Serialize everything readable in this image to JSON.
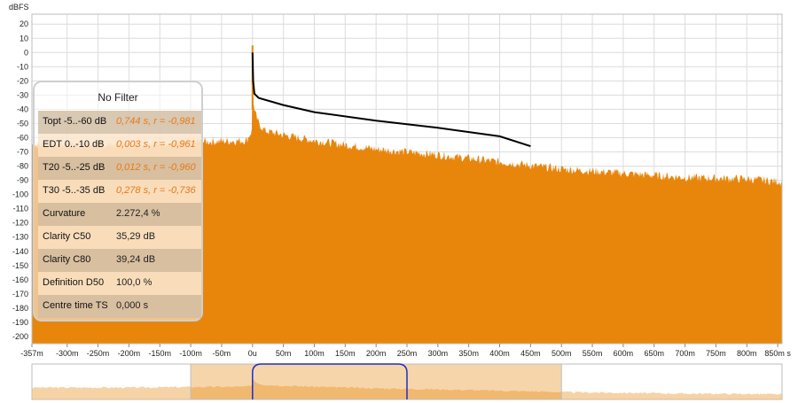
{
  "ylabel": "dBFS",
  "stats": {
    "title": "No Filter",
    "rows": [
      {
        "name": "Topt -5..-60 dB",
        "value": "0,744 s, r = -0,981",
        "highlight": true
      },
      {
        "name": "EDT 0..-10 dB",
        "value": "0,003 s, r = -0,961",
        "highlight": true
      },
      {
        "name": "T20 -5..-25 dB",
        "value": "0,012 s, r = -0,960",
        "highlight": true
      },
      {
        "name": "T30 -5..-35 dB",
        "value": "0,278 s, r = -0,736",
        "highlight": true
      },
      {
        "name": "Curvature",
        "value": "2.272,4 %",
        "highlight": false
      },
      {
        "name": "Clarity C50",
        "value": "35,29 dB",
        "highlight": false
      },
      {
        "name": "Clarity C80",
        "value": "39,24 dB",
        "highlight": false
      },
      {
        "name": "Definition D50",
        "value": "100,0 %",
        "highlight": false
      },
      {
        "name": "Centre time TS",
        "value": "0,000 s",
        "highlight": false
      }
    ]
  },
  "chart_data": {
    "type": "area",
    "ylabel": "dBFS",
    "ylim": [
      -205,
      27
    ],
    "xlim_ms": [
      -357,
      857
    ],
    "y_ticks": [
      20,
      10,
      0,
      -10,
      -20,
      -30,
      -40,
      -50,
      -60,
      -70,
      -80,
      -90,
      -100,
      -110,
      -120,
      -130,
      -140,
      -150,
      -160,
      -170,
      -180,
      -190,
      -200
    ],
    "x_ticks": [
      {
        "v": -357,
        "label": "-357m"
      },
      {
        "v": -300,
        "label": "-300m"
      },
      {
        "v": -250,
        "label": "-250m"
      },
      {
        "v": -200,
        "label": "-200m"
      },
      {
        "v": -150,
        "label": "-150m"
      },
      {
        "v": -100,
        "label": "-100m"
      },
      {
        "v": -50,
        "label": "-50m"
      },
      {
        "v": 0,
        "label": "0u"
      },
      {
        "v": 50,
        "label": "50m"
      },
      {
        "v": 100,
        "label": "100m"
      },
      {
        "v": 150,
        "label": "150m"
      },
      {
        "v": 200,
        "label": "200m"
      },
      {
        "v": 250,
        "label": "250m"
      },
      {
        "v": 300,
        "label": "300m"
      },
      {
        "v": 350,
        "label": "350m"
      },
      {
        "v": 400,
        "label": "400m"
      },
      {
        "v": 450,
        "label": "450m"
      },
      {
        "v": 500,
        "label": "500m"
      },
      {
        "v": 550,
        "label": "550m"
      },
      {
        "v": 600,
        "label": "600m"
      },
      {
        "v": 650,
        "label": "650m"
      },
      {
        "v": 700,
        "label": "700m"
      },
      {
        "v": 750,
        "label": "750m"
      },
      {
        "v": 800,
        "label": "800m"
      },
      {
        "v": 850,
        "label": "850m s"
      }
    ],
    "grid": true,
    "series": [
      {
        "kind": "impulse-envelope",
        "color": "#e8860c",
        "x_ms": [
          -357,
          -200,
          -150,
          -100,
          -10,
          -1,
          0,
          2,
          10,
          20,
          50,
          100,
          200,
          300,
          400,
          500,
          600,
          700,
          800,
          857
        ],
        "y": [
          -65,
          -65,
          -64,
          -63,
          -62,
          -55,
          5,
          -40,
          -50,
          -55,
          -58,
          -62,
          -68,
          -72,
          -77,
          -82,
          -85,
          -88,
          -89,
          -91
        ]
      },
      {
        "kind": "schroeder-integration",
        "color": "#000000",
        "x_ms": [
          0,
          1,
          3,
          10,
          50,
          100,
          200,
          300,
          400,
          450
        ],
        "y": [
          0,
          -20,
          -29,
          -32,
          -37,
          -42,
          -48,
          -53,
          -59,
          -66
        ]
      }
    ],
    "overview": {
      "window_ms": [
        0,
        250
      ]
    }
  }
}
